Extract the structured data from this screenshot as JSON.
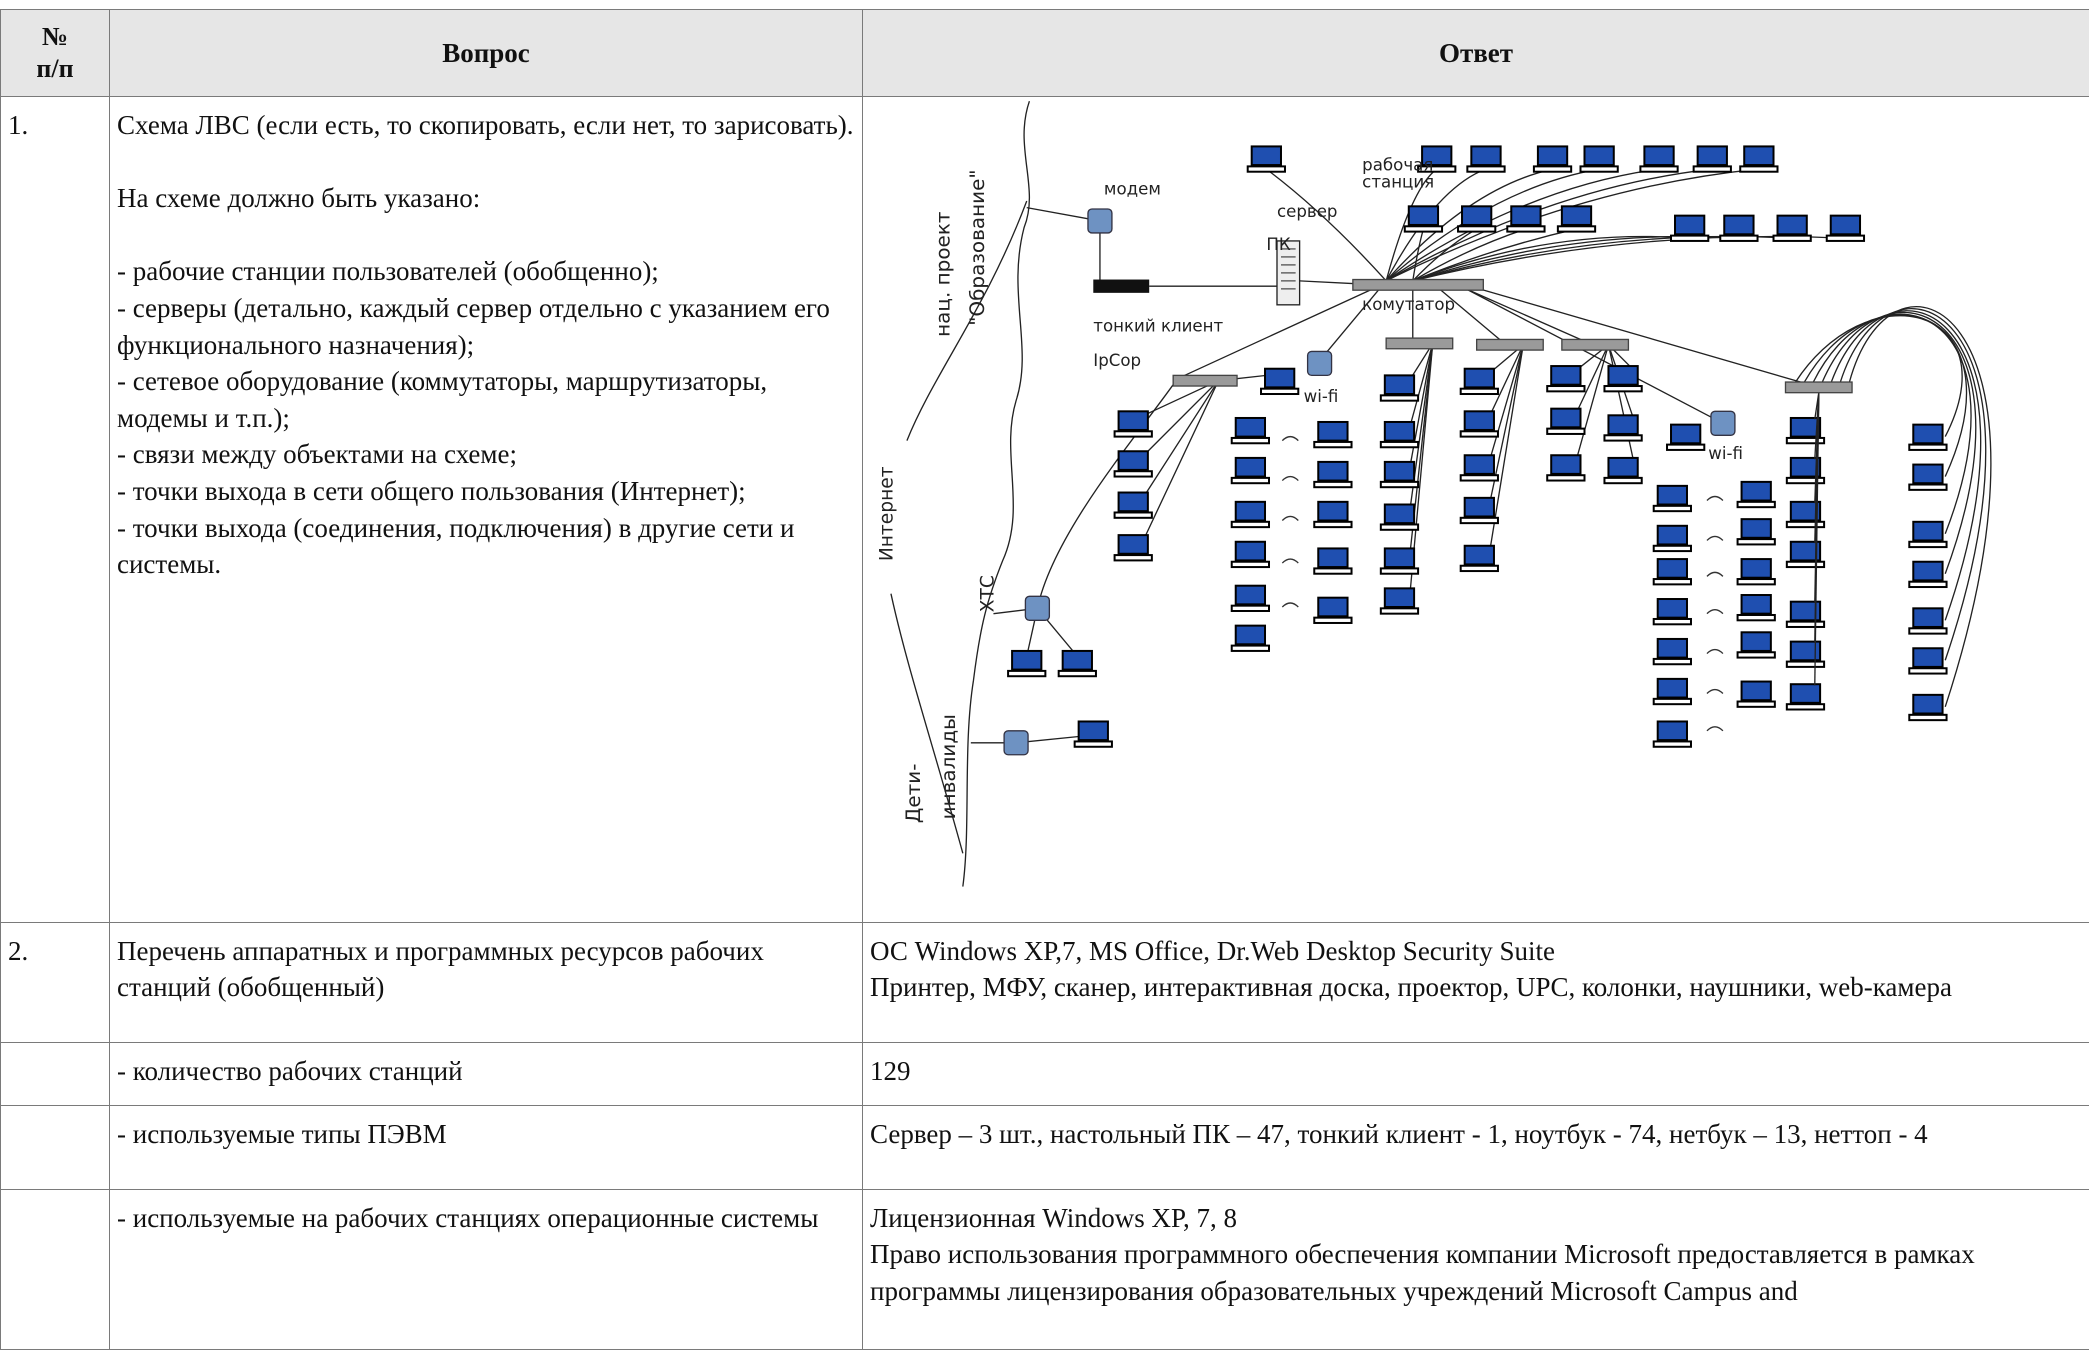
{
  "table": {
    "header": [
      "№\nп/п",
      "Вопрос",
      "Ответ"
    ],
    "rows": [
      {
        "number": "1.",
        "question": [
          "Схема ЛВС (если есть, то скопировать, если нет, то зарисовать).",
          "На схеме должно быть указано:",
          "- рабочие станции пользователей (обобщенно);",
          "- серверы (детально, каждый сервер отдельно с указанием его функционального назначения);",
          "- сетевое оборудование (коммутаторы, маршрутизаторы, модемы и т.п.);",
          "- связи между объектами на схеме;",
          "- точки выхода в сети общего пользования (Интернет);",
          "- точки выхода (соединения, подключения) в другие сети и системы."
        ],
        "diagram": {
          "labels": [
            "модем",
            "рабочая",
            "станция",
            "сервер",
            "ПК",
            "комутатор",
            "тонкий клиент",
            "IpCop",
            "wi-fi",
            "wi-fi",
            "нац. проект",
            "\"Образование\"",
            "Интернет",
            "ХТС",
            "Дети-",
            "инвалиды"
          ]
        }
      },
      {
        "number": "2.",
        "question": [
          "Перечень аппаратных и программных  ресурсов рабочих станций (обобщенный)"
        ],
        "answer": [
          "ОС Windows XP,7, MS Office, Dr.Web Desktop Security Suite",
          "Принтер, МФУ, сканер, интерактивная доска, проектор, UPC, колонки, наушники, web-камера"
        ]
      },
      {
        "question": [
          "- количество рабочих станций"
        ],
        "answer": [
          "129"
        ]
      },
      {
        "question": [
          "- используемые типы ПЭВМ"
        ],
        "answer": [
          "Сервер – 3 шт., настольный ПК – 47, тонкий клиент - 1, ноутбук - 74, нетбук – 13, неттоп - 4"
        ]
      },
      {
        "question": [
          "- используемые на рабочих станциях операционные системы"
        ],
        "answer": [
          "Лицензионная Windows XP, 7, 8",
          "Право использования программного обеспечения компании Microsoft предоставляется в рамках программы лицензирования  образовательных учреждений Microsoft Campus and"
        ]
      }
    ]
  }
}
